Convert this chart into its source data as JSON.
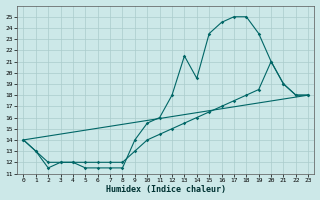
{
  "xlabel": "Humidex (Indice chaleur)",
  "background_color": "#cce8e8",
  "grid_color": "#aacccc",
  "line_color": "#006666",
  "xlim": [
    -0.5,
    23.5
  ],
  "ylim": [
    11,
    26
  ],
  "xtick_vals": [
    0,
    1,
    2,
    3,
    4,
    5,
    6,
    7,
    8,
    9,
    10,
    11,
    12,
    13,
    14,
    15,
    16,
    17,
    18,
    19,
    20,
    21,
    22,
    23
  ],
  "ytick_vals": [
    11,
    12,
    13,
    14,
    15,
    16,
    17,
    18,
    19,
    20,
    21,
    22,
    23,
    24,
    25
  ],
  "series1_x": [
    0,
    1,
    2,
    3,
    4,
    5,
    6,
    7,
    8,
    9,
    10,
    11,
    12,
    13,
    14,
    15,
    16,
    17,
    18,
    19,
    20,
    21,
    22,
    23
  ],
  "series1_y": [
    14,
    13,
    11.5,
    12,
    12,
    11.5,
    11.5,
    11.5,
    11.5,
    14,
    15.5,
    16,
    18,
    21.5,
    19.5,
    23.5,
    24.5,
    25,
    25,
    23.5,
    21,
    19,
    18,
    18
  ],
  "series2_x": [
    0,
    1,
    2,
    3,
    4,
    5,
    6,
    7,
    8,
    9,
    10,
    11,
    12,
    13,
    14,
    15,
    16,
    17,
    18,
    19,
    20,
    21,
    22,
    23
  ],
  "series2_y": [
    14,
    13,
    12,
    12,
    12,
    12,
    12,
    12,
    12,
    13,
    14,
    14.5,
    15,
    15.5,
    16,
    16.5,
    17,
    17.5,
    18,
    18.5,
    21,
    19,
    18,
    18
  ],
  "series3_x": [
    0,
    23
  ],
  "series3_y": [
    14,
    18
  ]
}
